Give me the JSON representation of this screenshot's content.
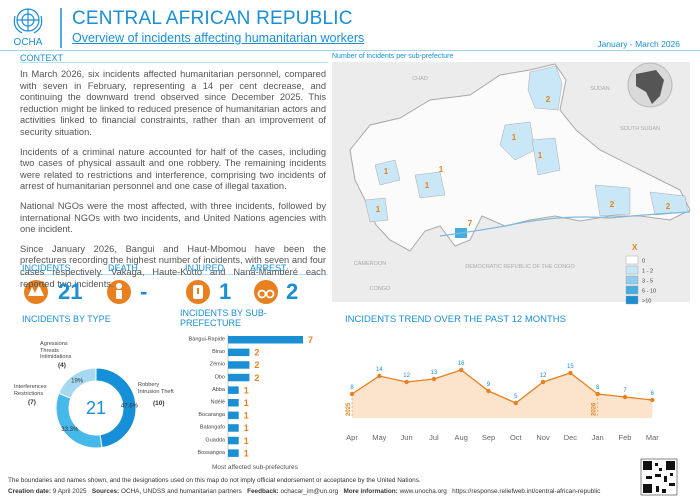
{
  "header": {
    "org": "OCHA",
    "title": "CENTRAL AFRICAN REPUBLIC",
    "subtitle": "Overview of incidents affecting humanitarian workers",
    "period": "January - March 2026"
  },
  "context": {
    "heading": "CONTEXT",
    "paragraphs": [
      "In March 2026, six incidents affected humanitarian personnel, compared with seven in February, representing a 14 per cent decrease, and continuing the downward trend observed since December 2025. This reduction might be linked to reduced presence of humanitarian actors and activities linked to financial constraints, rather than an improvement of security situation.",
      "Incidents of a criminal nature accounted for half of the cases, including two cases of physical assault and one robbery. The remaining incidents were related to restrictions and interference, comprising two incidents of arrest of humanitarian personnel and one case of illegal taxation.",
      "National NGOs were the most affected, with three incidents, followed by international NGOs with two incidents, and United Nations agencies with one incident.",
      "Since January 2026, Bangui and Haut-Mbomou have been the prefectures recording the highest number of incidents, with seven and four cases respectively. Vakaga, Haute-Kotto and Nana-Mambéré each reported two incidents."
    ]
  },
  "stats": [
    {
      "label": "INCIDENTS",
      "value": 21
    },
    {
      "label": "DEATH",
      "value": "-"
    },
    {
      "label": "INJURED",
      "value": 1
    },
    {
      "label": "ARREST",
      "value": 2
    }
  ],
  "map": {
    "title": "Number of incidents per sub-prefecture",
    "legend_title": "X",
    "legend": [
      {
        "label": "0",
        "color": "#ffffff"
      },
      {
        "label": "1 - 2",
        "color": "#c9e7f6"
      },
      {
        "label": "3 - 5",
        "color": "#8fcdec"
      },
      {
        "label": "6 - 10",
        "color": "#45aee0"
      },
      {
        "label": ">10",
        "color": "#1a8fd4"
      }
    ],
    "countries": [
      "CHAD",
      "SUDAN",
      "SOUTH SUDAN",
      "CAMEROON",
      "CONGO",
      "DEMOCRATIC REPUBLIC OF THE CONGO"
    ]
  },
  "chart_data": [
    {
      "type": "pie",
      "title": "INCIDENTS BY TYPE",
      "total": 21,
      "categories": [
        "Robbery Intrusion Theft",
        "Interferences Restrictions",
        "Agressions Threats Intimidations"
      ],
      "values": [
        10,
        7,
        4
      ],
      "value_labels": [
        "(10)",
        "(7)",
        "(4)"
      ],
      "percent_labels": [
        "47.6%",
        "33.3%",
        "19%"
      ],
      "colors": [
        "#1590d6",
        "#45b9ea",
        "#a6d9f1"
      ]
    },
    {
      "type": "bar",
      "title": "INCIDENTS BY SUB-PREFECTURE",
      "note": "Most affected sub-prefectures",
      "categories": [
        "Bangui-Rapide",
        "Birao",
        "Zémio",
        "Obo",
        "Abba",
        "Ndélé",
        "Bocaranga",
        "Batangafo",
        "Guadda",
        "Bossangoa"
      ],
      "values": [
        7,
        2,
        2,
        2,
        1,
        1,
        1,
        1,
        1,
        1
      ],
      "xlim": [
        0,
        7
      ],
      "color": "#1a8fd4",
      "label_color": "#e8801f"
    },
    {
      "type": "line",
      "title": "INCIDENTS TREND OVER THE PAST 12 MONTHS",
      "categories": [
        "Apr",
        "May",
        "Jun",
        "Jul",
        "Aug",
        "Sep",
        "Oct",
        "Nov",
        "Dec",
        "Jan",
        "Feb",
        "Mar"
      ],
      "values": [
        8,
        14,
        12,
        13,
        16,
        9,
        5,
        12,
        15,
        8,
        7,
        6
      ],
      "ylim": [
        0,
        18
      ],
      "color": "#e8801f",
      "fill": "#fbe3cc",
      "annotations": [
        "2025",
        "2026"
      ]
    }
  ],
  "footer": {
    "disclaimer": "The boundaries and names shown, and the designations used on this map do not imply official endorsement or acceptance by the United Nations.",
    "items": [
      {
        "label": "Creation date:",
        "value": "9 April 2025"
      },
      {
        "label": "Sources:",
        "value": "OCHA, UNDSS and humanitarian partners"
      },
      {
        "label": "Feedback:",
        "value": "ochacar_im@un.org"
      },
      {
        "label": "More information:",
        "value": "www.unocha.org"
      }
    ],
    "url": "https://response.reliefweb.int/central-african-republic"
  }
}
